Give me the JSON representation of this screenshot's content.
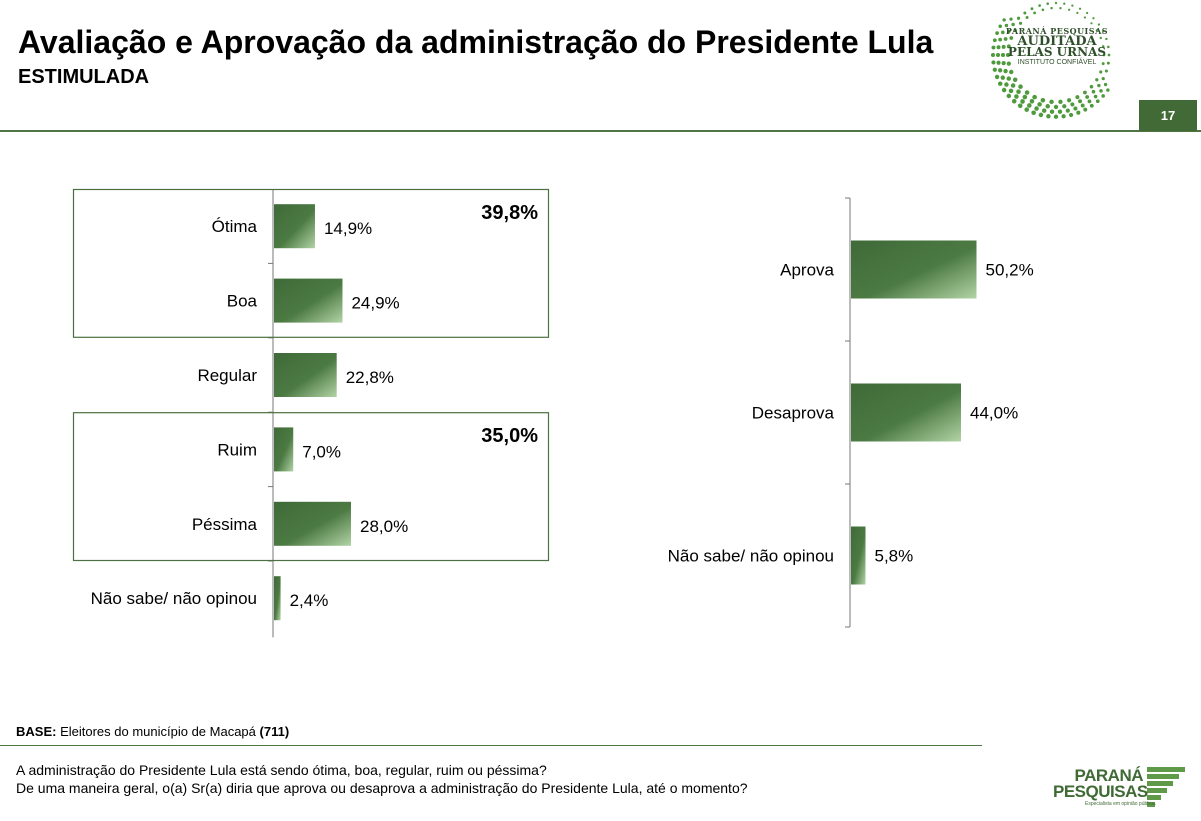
{
  "header": {
    "title": "Avaliação e Aprovação da administração do Presidente Lula",
    "subtitle": "ESTIMULADA",
    "page_number": "17"
  },
  "seal": {
    "line1": "PARANÁ PESQUISAS",
    "line2": "AUDITADA",
    "line3": "PELAS URNAS",
    "line4": "INSTITUTO CONFIÁVEL"
  },
  "colors": {
    "bar_dark": "#3f6a38",
    "bar_light": "#a8cc9c",
    "rule": "#4f7543",
    "box_border": "#4a7140"
  },
  "chart_data": [
    {
      "type": "bar",
      "orientation": "horizontal",
      "categories": [
        "Ótima",
        "Boa",
        "Regular",
        "Ruim",
        "Péssima",
        "Não sabe/ não opinou"
      ],
      "values": [
        14.9,
        24.9,
        22.8,
        7.0,
        28.0,
        2.4
      ],
      "value_labels": [
        "14,9%",
        "24,9%",
        "22,8%",
        "7,0%",
        "28,0%",
        "2,4%"
      ],
      "groups": [
        {
          "categories": [
            "Ótima",
            "Boa"
          ],
          "total_label": "39,8%"
        },
        {
          "categories": [
            "Ruim",
            "Péssima"
          ],
          "total_label": "35,0%"
        }
      ],
      "xlim": [
        0,
        100
      ]
    },
    {
      "type": "bar",
      "orientation": "horizontal",
      "categories": [
        "Aprova",
        "Desaprova",
        "Não sabe/ não opinou"
      ],
      "values": [
        50.2,
        44.0,
        5.8
      ],
      "value_labels": [
        "50,2%",
        "44,0%",
        "5,8%"
      ],
      "xlim": [
        0,
        100
      ]
    }
  ],
  "footer": {
    "base_label": "BASE:",
    "base_text": " Eleitores do município de Macapá ",
    "base_count": "(711)",
    "question1": "A administração do Presidente Lula está sendo ótima, boa, regular, ruim ou péssima?",
    "question2": "De uma maneira geral, o(a) Sr(a) diria que aprova ou desaprova a administração do Presidente Lula, até o momento?",
    "brand_line1": "PARANÁ",
    "brand_line2": "PESQUISAS",
    "brand_tag": "Especialista em opinião pública."
  }
}
